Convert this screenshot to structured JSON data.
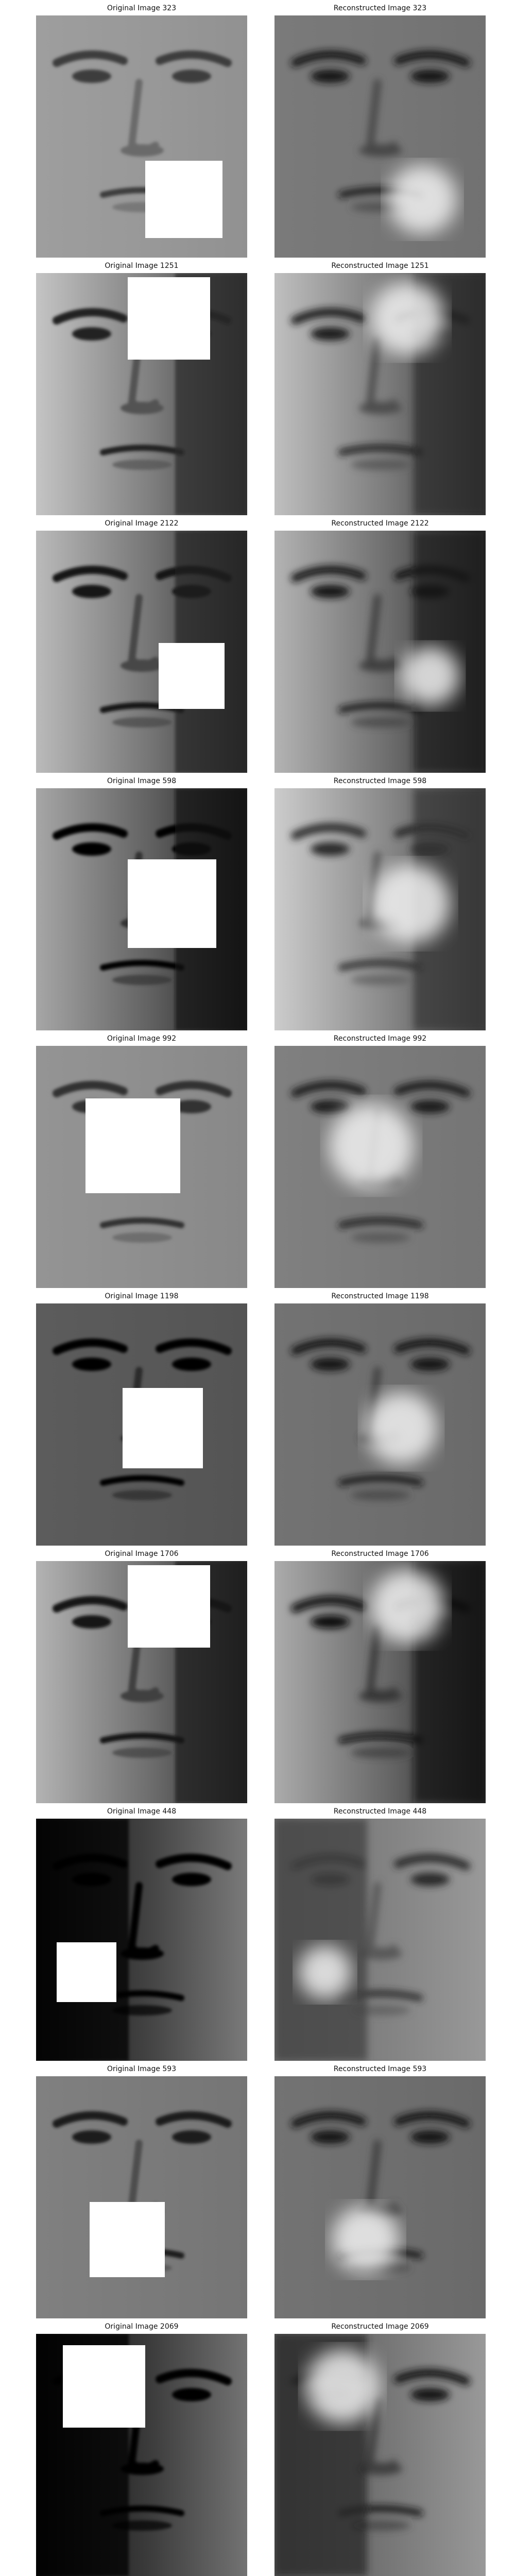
{
  "figure": {
    "pairs": [
      {
        "original_title": "Original Image 323",
        "reconstructed_title": "Reconstructed Image 323",
        "original_tone": 0.62,
        "reconstructed_tone": 0.48,
        "light_side": "even",
        "occlusion": "lower-right"
      },
      {
        "original_title": "Original Image 1251",
        "reconstructed_title": "Reconstructed Image 1251",
        "original_tone": 0.52,
        "reconstructed_tone": 0.5,
        "light_side": "left",
        "occlusion": "upper-right"
      },
      {
        "original_title": "Original Image 2122",
        "reconstructed_title": "Reconstructed Image 2122",
        "original_tone": 0.48,
        "reconstructed_tone": 0.45,
        "light_side": "left",
        "occlusion": "right-middle"
      },
      {
        "original_title": "Original Image 598",
        "reconstructed_title": "Reconstructed Image 598",
        "original_tone": 0.4,
        "reconstructed_tone": 0.55,
        "light_side": "left",
        "occlusion": "center-right"
      },
      {
        "original_title": "Original Image 992",
        "reconstructed_title": "Reconstructed Image 992",
        "original_tone": 0.58,
        "reconstructed_tone": 0.5,
        "light_side": "even",
        "occlusion": "center"
      },
      {
        "original_title": "Original Image 1198",
        "reconstructed_title": "Reconstructed Image 1198",
        "original_tone": 0.36,
        "reconstructed_tone": 0.45,
        "light_side": "even",
        "occlusion": "center-lower"
      },
      {
        "original_title": "Original Image 1706",
        "reconstructed_title": "Reconstructed Image 1706",
        "original_tone": 0.45,
        "reconstructed_tone": 0.42,
        "light_side": "left",
        "occlusion": "upper-right"
      },
      {
        "original_title": "Original Image 448",
        "reconstructed_title": "Reconstructed Image 448",
        "original_tone": 0.18,
        "reconstructed_tone": 0.55,
        "light_side": "right",
        "occlusion": "lower-left"
      },
      {
        "original_title": "Original Image 593",
        "reconstructed_title": "Reconstructed Image 593",
        "original_tone": 0.5,
        "reconstructed_tone": 0.45,
        "light_side": "even",
        "occlusion": "lower-center"
      },
      {
        "original_title": "Original Image 2069",
        "reconstructed_title": "Reconstructed Image 2069",
        "original_tone": 0.15,
        "reconstructed_tone": 0.45,
        "light_side": "right",
        "occlusion": "upper-left"
      }
    ]
  }
}
